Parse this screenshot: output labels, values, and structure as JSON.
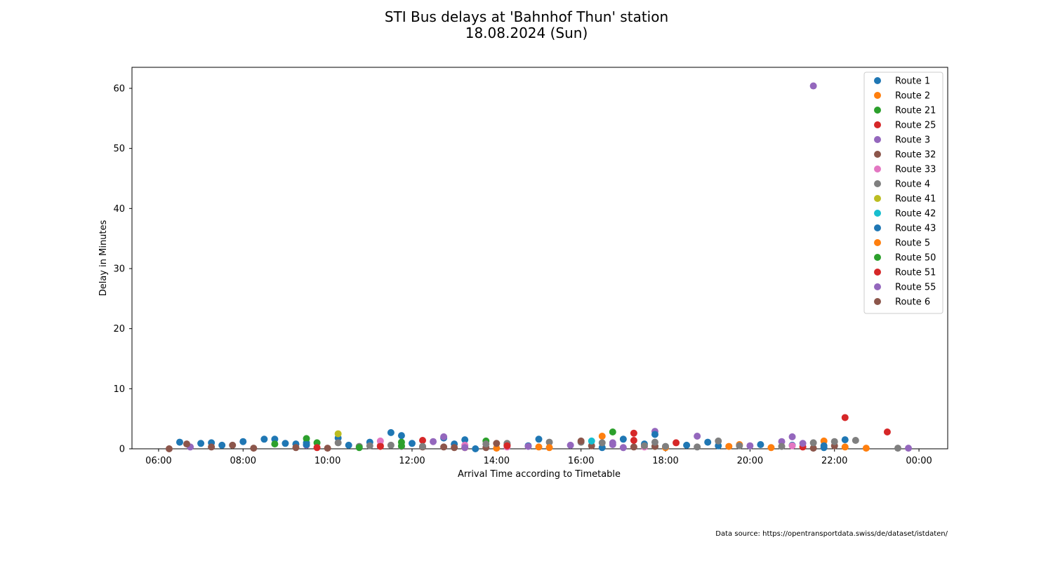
{
  "chart_data": {
    "type": "scatter",
    "title": "STI Bus delays at 'Bahnhof Thun' station",
    "subtitle": "18.08.2024 (Sun)",
    "xlabel": "Arrival Time according to Timetable",
    "ylabel": "Delay in Minutes",
    "x_ticks": [
      "06:00",
      "08:00",
      "10:00",
      "12:00",
      "14:00",
      "16:00",
      "18:00",
      "20:00",
      "22:00",
      "00:00"
    ],
    "x_range_hours": [
      5.37,
      24.68
    ],
    "y_ticks": [
      0,
      10,
      20,
      30,
      40,
      50,
      60
    ],
    "ylim": [
      0,
      63.5
    ],
    "grid": false,
    "legend_position": "upper right",
    "series": [
      {
        "name": "Route 1",
        "color": "#1f77b4",
        "points": [
          [
            "06:30",
            1.1
          ],
          [
            "07:00",
            0.9
          ],
          [
            "07:15",
            1.0
          ],
          [
            "07:30",
            0.6
          ],
          [
            "08:00",
            1.2
          ],
          [
            "08:30",
            1.6
          ],
          [
            "08:45",
            1.6
          ],
          [
            "09:00",
            0.9
          ],
          [
            "09:15",
            0.8
          ],
          [
            "09:30",
            1.0
          ],
          [
            "10:15",
            1.8
          ],
          [
            "10:30",
            0.6
          ],
          [
            "11:00",
            1.1
          ],
          [
            "11:30",
            2.7
          ],
          [
            "11:45",
            2.2
          ],
          [
            "12:00",
            0.9
          ],
          [
            "12:45",
            1.8
          ],
          [
            "13:00",
            0.8
          ],
          [
            "13:15",
            1.5
          ],
          [
            "14:45",
            0.5
          ],
          [
            "15:00",
            1.6
          ],
          [
            "16:30",
            0.2
          ],
          [
            "17:00",
            1.6
          ],
          [
            "17:30",
            0.8
          ],
          [
            "18:30",
            0.6
          ],
          [
            "19:00",
            1.1
          ],
          [
            "19:15",
            0.5
          ],
          [
            "20:15",
            0.7
          ],
          [
            "21:00",
            0.6
          ],
          [
            "21:45",
            0.2
          ],
          [
            "22:15",
            1.5
          ]
        ]
      },
      {
        "name": "Route 2",
        "color": "#ff7f0e",
        "points": [
          [
            "13:15",
            0.2
          ],
          [
            "15:00",
            0.3
          ],
          [
            "16:30",
            2.1
          ],
          [
            "18:00",
            0.2
          ],
          [
            "19:30",
            0.4
          ],
          [
            "19:45",
            0.7
          ],
          [
            "20:30",
            0.2
          ],
          [
            "21:45",
            1.3
          ],
          [
            "22:45",
            0.1
          ]
        ]
      },
      {
        "name": "Route 21",
        "color": "#2ca02c",
        "points": [
          [
            "08:45",
            0.8
          ],
          [
            "09:30",
            1.7
          ],
          [
            "09:45",
            1.0
          ],
          [
            "11:45",
            1.1
          ],
          [
            "13:45",
            1.3
          ],
          [
            "16:45",
            2.8
          ],
          [
            "17:45",
            0.4
          ]
        ]
      },
      {
        "name": "Route 25",
        "color": "#d62728",
        "points": [
          [
            "09:45",
            0.2
          ],
          [
            "11:15",
            0.5
          ],
          [
            "12:15",
            1.4
          ],
          [
            "14:15",
            0.7
          ],
          [
            "17:15",
            2.6
          ],
          [
            "18:15",
            1.0
          ],
          [
            "21:15",
            0.3
          ],
          [
            "22:15",
            5.2
          ],
          [
            "23:15",
            2.8
          ]
        ]
      },
      {
        "name": "Route 3",
        "color": "#9467bd",
        "points": [
          [
            "06:45",
            0.3
          ],
          [
            "09:30",
            0.6
          ],
          [
            "12:30",
            1.2
          ],
          [
            "12:45",
            2.0
          ],
          [
            "14:45",
            0.4
          ],
          [
            "15:45",
            0.6
          ],
          [
            "16:45",
            0.7
          ],
          [
            "17:00",
            0.2
          ],
          [
            "17:45",
            2.9
          ],
          [
            "18:45",
            2.1
          ],
          [
            "20:00",
            0.5
          ],
          [
            "20:45",
            1.2
          ],
          [
            "21:00",
            2.0
          ],
          [
            "21:15",
            0.9
          ],
          [
            "21:30",
            60.4
          ],
          [
            "23:45",
            0.1
          ]
        ]
      },
      {
        "name": "Route 32",
        "color": "#8c564b",
        "points": [
          [
            "06:15",
            0.0
          ],
          [
            "06:40",
            0.8
          ],
          [
            "07:15",
            0.3
          ],
          [
            "07:45",
            0.6
          ],
          [
            "08:15",
            0.1
          ],
          [
            "09:15",
            0.2
          ],
          [
            "10:00",
            0.1
          ],
          [
            "12:15",
            0.3
          ],
          [
            "12:45",
            0.3
          ],
          [
            "13:45",
            0.2
          ],
          [
            "14:15",
            0.6
          ],
          [
            "16:15",
            0.5
          ],
          [
            "17:15",
            0.3
          ],
          [
            "17:45",
            0.4
          ],
          [
            "21:30",
            0.1
          ],
          [
            "22:00",
            0.5
          ]
        ]
      },
      {
        "name": "Route 33",
        "color": "#e377c2",
        "points": [
          [
            "11:15",
            1.3
          ],
          [
            "13:15",
            0.6
          ],
          [
            "14:15",
            0.3
          ],
          [
            "17:30",
            0.3
          ],
          [
            "21:00",
            0.5
          ]
        ]
      },
      {
        "name": "Route 4",
        "color": "#7f7f7f",
        "points": [
          [
            "10:15",
            1.0
          ],
          [
            "10:45",
            0.4
          ],
          [
            "11:00",
            0.5
          ],
          [
            "11:30",
            0.6
          ],
          [
            "11:45",
            0.4
          ],
          [
            "12:15",
            0.4
          ],
          [
            "13:45",
            0.8
          ],
          [
            "14:15",
            0.9
          ],
          [
            "15:15",
            1.1
          ],
          [
            "16:00",
            1.1
          ],
          [
            "16:30",
            1.0
          ],
          [
            "17:30",
            0.5
          ],
          [
            "17:45",
            1.1
          ],
          [
            "18:00",
            0.4
          ],
          [
            "18:45",
            0.3
          ],
          [
            "19:15",
            1.3
          ],
          [
            "19:45",
            0.5
          ],
          [
            "20:45",
            0.4
          ],
          [
            "21:30",
            1.0
          ],
          [
            "22:00",
            1.2
          ],
          [
            "22:30",
            1.4
          ],
          [
            "23:30",
            0.1
          ]
        ]
      },
      {
        "name": "Route 41",
        "color": "#bcbd22",
        "points": [
          [
            "10:15",
            2.5
          ]
        ]
      },
      {
        "name": "Route 42",
        "color": "#17becf",
        "points": [
          [
            "16:15",
            1.3
          ]
        ]
      },
      {
        "name": "Route 43",
        "color": "#1f77b4",
        "points": [
          [
            "09:30",
            0.7
          ],
          [
            "13:30",
            0.0
          ],
          [
            "17:45",
            2.4
          ],
          [
            "21:45",
            0.5
          ]
        ]
      },
      {
        "name": "Route 5",
        "color": "#ff7f0e",
        "points": [
          [
            "14:00",
            0.1
          ],
          [
            "15:15",
            0.2
          ],
          [
            "22:15",
            0.3
          ]
        ]
      },
      {
        "name": "Route 50",
        "color": "#2ca02c",
        "points": [
          [
            "10:45",
            0.2
          ],
          [
            "11:45",
            0.5
          ]
        ]
      },
      {
        "name": "Route 51",
        "color": "#d62728",
        "points": [
          [
            "11:15",
            0.4
          ],
          [
            "14:15",
            0.5
          ],
          [
            "17:15",
            1.4
          ]
        ]
      },
      {
        "name": "Route 55",
        "color": "#9467bd",
        "points": [
          [
            "13:15",
            0.2
          ],
          [
            "16:45",
            1.0
          ]
        ]
      },
      {
        "name": "Route 6",
        "color": "#8c564b",
        "points": [
          [
            "13:00",
            0.2
          ],
          [
            "14:00",
            0.9
          ],
          [
            "16:00",
            1.3
          ]
        ]
      }
    ]
  },
  "footer": {
    "source": "Data source: https://opentransportdata.swiss/de/dataset/istdaten/"
  }
}
